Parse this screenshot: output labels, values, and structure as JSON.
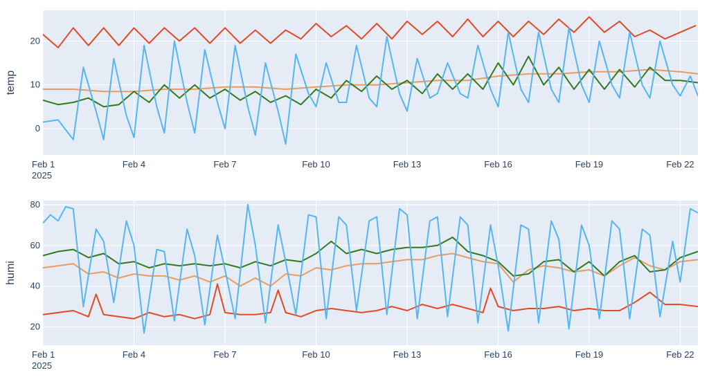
{
  "colors": {
    "plot_bg": "#e5ecf6",
    "grid": "#ffffff",
    "text": "#2a3f5f",
    "series": [
      "#e24a24",
      "#e89c62",
      "#2f7a1f",
      "#54b5f2"
    ]
  },
  "chart_data": [
    {
      "type": "line",
      "ylabel": "temp",
      "x_range": [
        "2025-02-01",
        "2025-02-22 14:00"
      ],
      "x_ticks": [
        "2025-02-01",
        "2025-02-04",
        "2025-02-07",
        "2025-02-10",
        "2025-02-13",
        "2025-02-16",
        "2025-02-19",
        "2025-02-22"
      ],
      "x_tick_labels": [
        "Feb 1",
        "Feb 4",
        "Feb 7",
        "Feb 10",
        "Feb 13",
        "Feb 16",
        "Feb 19",
        "Feb 22"
      ],
      "x_year_label": "2025",
      "ylim": [
        -6,
        27
      ],
      "y_ticks": [
        0,
        10,
        20
      ],
      "grid": true,
      "series": [
        {
          "color": "#e24a24",
          "x": [
            "2025-02-01",
            "2025-02-01 12:00",
            "2025-02-02",
            "2025-02-02 12:00",
            "2025-02-03",
            "2025-02-03 12:00",
            "2025-02-04",
            "2025-02-04 12:00",
            "2025-02-05",
            "2025-02-05 12:00",
            "2025-02-06",
            "2025-02-06 12:00",
            "2025-02-07",
            "2025-02-07 12:00",
            "2025-02-08",
            "2025-02-08 12:00",
            "2025-02-09",
            "2025-02-09 12:00",
            "2025-02-10",
            "2025-02-10 12:00",
            "2025-02-11",
            "2025-02-11 12:00",
            "2025-02-12",
            "2025-02-12 12:00",
            "2025-02-13",
            "2025-02-13 12:00",
            "2025-02-14",
            "2025-02-14 12:00",
            "2025-02-15",
            "2025-02-15 12:00",
            "2025-02-16",
            "2025-02-16 12:00",
            "2025-02-17",
            "2025-02-17 12:00",
            "2025-02-18",
            "2025-02-18 12:00",
            "2025-02-19",
            "2025-02-19 12:00",
            "2025-02-20",
            "2025-02-20 12:00",
            "2025-02-21",
            "2025-02-21 12:00",
            "2025-02-22",
            "2025-02-22 12:00"
          ],
          "y": [
            21.5,
            18.5,
            23,
            19,
            23,
            19,
            23,
            19.5,
            23,
            20,
            23,
            19.5,
            23,
            19.5,
            22.5,
            19.5,
            22.5,
            20.5,
            24,
            21,
            23.5,
            20.5,
            24,
            20.5,
            24.5,
            21.5,
            24.5,
            21,
            25,
            21,
            24.5,
            21,
            24.5,
            21.5,
            25,
            22,
            25.5,
            22,
            24.5,
            21,
            22.5,
            20.5,
            22,
            23.5
          ]
        },
        {
          "color": "#e89c62",
          "x": [
            "2025-02-01",
            "2025-02-02",
            "2025-02-03",
            "2025-02-04",
            "2025-02-05",
            "2025-02-06",
            "2025-02-07",
            "2025-02-08",
            "2025-02-09",
            "2025-02-10",
            "2025-02-11",
            "2025-02-12",
            "2025-02-13",
            "2025-02-14",
            "2025-02-15",
            "2025-02-16",
            "2025-02-17",
            "2025-02-18",
            "2025-02-19",
            "2025-02-20",
            "2025-02-21",
            "2025-02-22",
            "2025-02-22 14:00"
          ],
          "y": [
            9,
            9,
            8.5,
            8.5,
            9,
            9,
            9.5,
            9.5,
            9,
            9.5,
            10,
            10,
            10.5,
            11,
            11,
            12,
            12.5,
            12.5,
            13,
            13,
            13.5,
            13,
            12.5
          ]
        },
        {
          "color": "#2f7a1f",
          "x": [
            "2025-02-01",
            "2025-02-01 12:00",
            "2025-02-02",
            "2025-02-02 12:00",
            "2025-02-03",
            "2025-02-03 12:00",
            "2025-02-04",
            "2025-02-04 12:00",
            "2025-02-05",
            "2025-02-05 12:00",
            "2025-02-06",
            "2025-02-06 12:00",
            "2025-02-07",
            "2025-02-07 12:00",
            "2025-02-08",
            "2025-02-08 12:00",
            "2025-02-09",
            "2025-02-09 12:00",
            "2025-02-10",
            "2025-02-10 12:00",
            "2025-02-11",
            "2025-02-11 12:00",
            "2025-02-12",
            "2025-02-12 12:00",
            "2025-02-13",
            "2025-02-13 12:00",
            "2025-02-14",
            "2025-02-14 12:00",
            "2025-02-15",
            "2025-02-15 12:00",
            "2025-02-16",
            "2025-02-16 12:00",
            "2025-02-17",
            "2025-02-17 12:00",
            "2025-02-18",
            "2025-02-18 12:00",
            "2025-02-19",
            "2025-02-19 12:00",
            "2025-02-20",
            "2025-02-20 12:00",
            "2025-02-21",
            "2025-02-21 12:00",
            "2025-02-22",
            "2025-02-22 14:00"
          ],
          "y": [
            6.5,
            5.5,
            6,
            7,
            5,
            5.5,
            8.5,
            6,
            10,
            7,
            10,
            7,
            9,
            6.5,
            8.5,
            6,
            7.5,
            5.5,
            9,
            7,
            11,
            8.5,
            12,
            9,
            11,
            8,
            12.5,
            9,
            12.5,
            9,
            15,
            10,
            16.5,
            10,
            14,
            9,
            13.5,
            9,
            13.5,
            9.5,
            14,
            11,
            11,
            10.5
          ]
        },
        {
          "color": "#54b5f2",
          "x": [
            "2025-02-01",
            "2025-02-01 12:00",
            "2025-02-02",
            "2025-02-02 08:00",
            "2025-02-02 18:00",
            "2025-02-03",
            "2025-02-03 08:00",
            "2025-02-03 18:00",
            "2025-02-04",
            "2025-02-04 08:00",
            "2025-02-04 18:00",
            "2025-02-05",
            "2025-02-05 08:00",
            "2025-02-05 18:00",
            "2025-02-06",
            "2025-02-06 08:00",
            "2025-02-06 18:00",
            "2025-02-07",
            "2025-02-07 08:00",
            "2025-02-07 18:00",
            "2025-02-08",
            "2025-02-08 08:00",
            "2025-02-08 18:00",
            "2025-02-09",
            "2025-02-09 08:00",
            "2025-02-09 18:00",
            "2025-02-10",
            "2025-02-10 08:00",
            "2025-02-10 18:00",
            "2025-02-11",
            "2025-02-11 08:00",
            "2025-02-11 18:00",
            "2025-02-12",
            "2025-02-12 08:00",
            "2025-02-12 18:00",
            "2025-02-13",
            "2025-02-13 08:00",
            "2025-02-13 18:00",
            "2025-02-14",
            "2025-02-14 08:00",
            "2025-02-14 18:00",
            "2025-02-15",
            "2025-02-15 08:00",
            "2025-02-15 18:00",
            "2025-02-16",
            "2025-02-16 08:00",
            "2025-02-16 18:00",
            "2025-02-17",
            "2025-02-17 08:00",
            "2025-02-17 18:00",
            "2025-02-18",
            "2025-02-18 08:00",
            "2025-02-18 18:00",
            "2025-02-19",
            "2025-02-19 08:00",
            "2025-02-19 18:00",
            "2025-02-20",
            "2025-02-20 08:00",
            "2025-02-20 18:00",
            "2025-02-21",
            "2025-02-21 08:00",
            "2025-02-21 18:00",
            "2025-02-22",
            "2025-02-22 08:00",
            "2025-02-22 14:00"
          ],
          "y": [
            1.5,
            2,
            -2.5,
            14,
            4,
            -2.5,
            16,
            3,
            -2,
            19,
            5,
            -1,
            20,
            6,
            -1,
            18,
            6,
            0,
            19,
            5,
            -1.5,
            15,
            4,
            -3.5,
            17,
            8,
            5,
            15,
            6,
            6,
            19,
            7,
            5,
            21,
            8,
            4,
            16,
            7,
            8,
            15,
            8,
            7,
            19,
            9,
            5,
            22,
            9,
            6,
            22,
            9,
            6,
            23,
            10,
            6,
            20,
            10,
            7,
            22,
            10,
            7,
            20,
            10,
            7.5,
            12,
            7.5
          ]
        }
      ]
    },
    {
      "type": "line",
      "ylabel": "humi",
      "x_range": [
        "2025-02-01",
        "2025-02-22 14:00"
      ],
      "x_ticks": [
        "2025-02-01",
        "2025-02-04",
        "2025-02-07",
        "2025-02-10",
        "2025-02-13",
        "2025-02-16",
        "2025-02-19",
        "2025-02-22"
      ],
      "x_tick_labels": [
        "Feb 1",
        "Feb 4",
        "Feb 7",
        "Feb 10",
        "Feb 13",
        "Feb 16",
        "Feb 19",
        "Feb 22"
      ],
      "x_year_label": "2025",
      "ylim": [
        11,
        82
      ],
      "y_ticks": [
        20,
        40,
        60,
        80
      ],
      "grid": true,
      "series": [
        {
          "color": "#e24a24",
          "x": [
            "2025-02-01",
            "2025-02-01 12:00",
            "2025-02-02",
            "2025-02-02 12:00",
            "2025-02-02 18:00",
            "2025-02-03",
            "2025-02-03 12:00",
            "2025-02-04",
            "2025-02-04 12:00",
            "2025-02-05",
            "2025-02-05 12:00",
            "2025-02-06",
            "2025-02-06 12:00",
            "2025-02-06 18:00",
            "2025-02-07",
            "2025-02-07 12:00",
            "2025-02-08",
            "2025-02-08 12:00",
            "2025-02-08 18:00",
            "2025-02-09",
            "2025-02-09 12:00",
            "2025-02-10",
            "2025-02-10 12:00",
            "2025-02-11",
            "2025-02-11 12:00",
            "2025-02-12",
            "2025-02-12 12:00",
            "2025-02-13",
            "2025-02-13 12:00",
            "2025-02-14",
            "2025-02-14 12:00",
            "2025-02-15",
            "2025-02-15 12:00",
            "2025-02-15 18:00",
            "2025-02-16",
            "2025-02-16 12:00",
            "2025-02-17",
            "2025-02-17 12:00",
            "2025-02-18",
            "2025-02-18 12:00",
            "2025-02-19",
            "2025-02-19 12:00",
            "2025-02-20",
            "2025-02-20 12:00",
            "2025-02-21",
            "2025-02-21 12:00",
            "2025-02-22",
            "2025-02-22 14:00"
          ],
          "y": [
            26,
            27,
            28,
            25,
            36,
            26,
            25,
            24,
            27,
            25,
            26,
            24,
            26,
            41,
            27,
            26,
            26,
            27,
            38,
            27,
            25,
            28,
            29,
            28,
            27,
            28,
            30,
            28,
            31,
            29,
            31,
            29,
            27,
            39,
            30,
            28,
            29,
            29,
            30,
            28,
            29,
            28,
            28,
            32,
            37,
            31,
            31,
            30
          ]
        },
        {
          "color": "#e89c62",
          "x": [
            "2025-02-01",
            "2025-02-01 12:00",
            "2025-02-02",
            "2025-02-02 12:00",
            "2025-02-03",
            "2025-02-03 12:00",
            "2025-02-04",
            "2025-02-04 12:00",
            "2025-02-05",
            "2025-02-05 12:00",
            "2025-02-06",
            "2025-02-06 12:00",
            "2025-02-07",
            "2025-02-07 12:00",
            "2025-02-08",
            "2025-02-08 12:00",
            "2025-02-09",
            "2025-02-09 12:00",
            "2025-02-10",
            "2025-02-10 12:00",
            "2025-02-11",
            "2025-02-11 12:00",
            "2025-02-12",
            "2025-02-12 12:00",
            "2025-02-13",
            "2025-02-13 12:00",
            "2025-02-14",
            "2025-02-14 12:00",
            "2025-02-15",
            "2025-02-15 12:00",
            "2025-02-16",
            "2025-02-16 12:00",
            "2025-02-17",
            "2025-02-17 12:00",
            "2025-02-18",
            "2025-02-18 12:00",
            "2025-02-19",
            "2025-02-19 12:00",
            "2025-02-20",
            "2025-02-20 12:00",
            "2025-02-21",
            "2025-02-21 12:00",
            "2025-02-22",
            "2025-02-22 14:00"
          ],
          "y": [
            49,
            50,
            51,
            46,
            47,
            44,
            46,
            45,
            45,
            43,
            45,
            42,
            45,
            40,
            44,
            40,
            46,
            45,
            49,
            48,
            50,
            51,
            51,
            52,
            53,
            53,
            55,
            56,
            54,
            52,
            51,
            42,
            48,
            50,
            49,
            47,
            48,
            45,
            50,
            54,
            50,
            48,
            52,
            53
          ]
        },
        {
          "color": "#2f7a1f",
          "x": [
            "2025-02-01",
            "2025-02-01 12:00",
            "2025-02-02",
            "2025-02-02 12:00",
            "2025-02-03",
            "2025-02-03 12:00",
            "2025-02-04",
            "2025-02-04 12:00",
            "2025-02-05",
            "2025-02-05 12:00",
            "2025-02-06",
            "2025-02-06 12:00",
            "2025-02-07",
            "2025-02-07 12:00",
            "2025-02-08",
            "2025-02-08 12:00",
            "2025-02-09",
            "2025-02-09 12:00",
            "2025-02-10",
            "2025-02-10 12:00",
            "2025-02-11",
            "2025-02-11 12:00",
            "2025-02-12",
            "2025-02-12 12:00",
            "2025-02-13",
            "2025-02-13 12:00",
            "2025-02-14",
            "2025-02-14 12:00",
            "2025-02-15",
            "2025-02-15 12:00",
            "2025-02-16",
            "2025-02-16 12:00",
            "2025-02-17",
            "2025-02-17 12:00",
            "2025-02-18",
            "2025-02-18 12:00",
            "2025-02-19",
            "2025-02-19 12:00",
            "2025-02-20",
            "2025-02-20 12:00",
            "2025-02-21",
            "2025-02-21 12:00",
            "2025-02-22",
            "2025-02-22 14:00"
          ],
          "y": [
            55,
            57,
            58,
            54,
            56,
            51,
            52,
            49,
            51,
            50,
            51,
            50,
            51,
            49,
            52,
            50,
            53,
            52,
            56,
            62,
            56,
            58,
            56,
            58,
            59,
            59,
            60,
            64,
            57,
            55,
            52,
            45,
            46,
            52,
            53,
            47,
            52,
            45,
            52,
            55,
            47,
            48,
            54,
            57
          ]
        },
        {
          "color": "#54b5f2",
          "x": [
            "2025-02-01",
            "2025-02-01 06:00",
            "2025-02-01 12:00",
            "2025-02-01 18:00",
            "2025-02-02",
            "2025-02-02 08:00",
            "2025-02-02 18:00",
            "2025-02-03",
            "2025-02-03 08:00",
            "2025-02-03 18:00",
            "2025-02-04",
            "2025-02-04 08:00",
            "2025-02-04 18:00",
            "2025-02-05",
            "2025-02-05 08:00",
            "2025-02-05 18:00",
            "2025-02-06",
            "2025-02-06 08:00",
            "2025-02-06 18:00",
            "2025-02-07",
            "2025-02-07 08:00",
            "2025-02-07 18:00",
            "2025-02-08",
            "2025-02-08 08:00",
            "2025-02-08 18:00",
            "2025-02-09",
            "2025-02-09 08:00",
            "2025-02-09 18:00",
            "2025-02-10",
            "2025-02-10 08:00",
            "2025-02-10 18:00",
            "2025-02-11",
            "2025-02-11 08:00",
            "2025-02-11 18:00",
            "2025-02-12",
            "2025-02-12 08:00",
            "2025-02-12 18:00",
            "2025-02-13",
            "2025-02-13 08:00",
            "2025-02-13 18:00",
            "2025-02-14",
            "2025-02-14 08:00",
            "2025-02-14 18:00",
            "2025-02-15",
            "2025-02-15 08:00",
            "2025-02-15 18:00",
            "2025-02-16",
            "2025-02-16 08:00",
            "2025-02-16 18:00",
            "2025-02-17",
            "2025-02-17 08:00",
            "2025-02-17 18:00",
            "2025-02-18",
            "2025-02-18 08:00",
            "2025-02-18 18:00",
            "2025-02-19",
            "2025-02-19 08:00",
            "2025-02-19 18:00",
            "2025-02-20",
            "2025-02-20 08:00",
            "2025-02-20 18:00",
            "2025-02-21",
            "2025-02-21 08:00",
            "2025-02-21 18:00",
            "2025-02-22",
            "2025-02-22 08:00",
            "2025-02-22 14:00"
          ],
          "y": [
            71,
            75,
            72,
            79,
            78,
            30,
            68,
            62,
            32,
            72,
            60,
            17,
            58,
            57,
            23,
            68,
            55,
            21,
            65,
            48,
            24,
            80,
            60,
            22,
            70,
            52,
            26,
            75,
            74,
            24,
            74,
            70,
            28,
            72,
            74,
            26,
            78,
            75,
            24,
            72,
            74,
            25,
            74,
            70,
            22,
            70,
            50,
            18,
            70,
            68,
            22,
            72,
            63,
            19,
            70,
            60,
            24,
            72,
            68,
            24,
            68,
            65,
            25,
            62,
            42,
            78,
            76
          ]
        }
      ]
    }
  ]
}
